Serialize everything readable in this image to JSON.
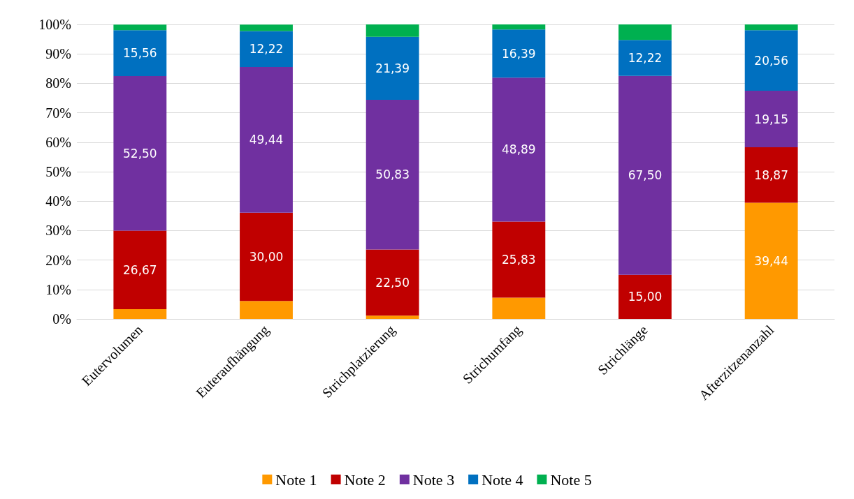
{
  "chart_data": {
    "type": "bar",
    "stacked": true,
    "categories": [
      "Eutervolumen",
      "Euteraufhängung",
      "Strichplatzierung",
      "Strichumfang",
      "Strichlänge",
      "Afterzitzenanzahl"
    ],
    "series": [
      {
        "name": "Note 1",
        "color": "#ff9900",
        "values": [
          3.3,
          6.1,
          1.1,
          7.2,
          0,
          39.44
        ],
        "value_labels": [
          null,
          null,
          null,
          null,
          null,
          "39,44"
        ]
      },
      {
        "name": "Note 2",
        "color": "#c00000",
        "values": [
          26.67,
          30.0,
          22.5,
          25.83,
          15.0,
          18.87
        ],
        "value_labels": [
          "26,67",
          "30,00",
          "22,50",
          "25,83",
          "15,00",
          "18,87"
        ]
      },
      {
        "name": "Note 3",
        "color": "#7030a0",
        "values": [
          52.5,
          49.44,
          50.83,
          48.89,
          67.5,
          19.15
        ],
        "value_labels": [
          "52,50",
          "49,44",
          "50,83",
          "48,89",
          "67,50",
          "19,15"
        ]
      },
      {
        "name": "Note 4",
        "color": "#0070c0",
        "values": [
          15.56,
          12.22,
          21.39,
          16.39,
          12.22,
          20.56
        ],
        "value_labels": [
          "15,56",
          "12,22",
          "21,39",
          "16,39",
          "12,22",
          "20,56"
        ]
      },
      {
        "name": "Note 5",
        "color": "#00b050",
        "values": [
          1.9,
          2.2,
          4.2,
          1.7,
          5.3,
          2.0
        ]
      }
    ],
    "ylim": [
      0,
      100
    ],
    "yticks": [
      {
        "value": 0,
        "label": "0%"
      },
      {
        "value": 10,
        "label": "10%"
      },
      {
        "value": 20,
        "label": "20%"
      },
      {
        "value": 30,
        "label": "30%"
      },
      {
        "value": 40,
        "label": "40%"
      },
      {
        "value": 50,
        "label": "50%"
      },
      {
        "value": 60,
        "label": "60%"
      },
      {
        "value": 70,
        "label": "70%"
      },
      {
        "value": 80,
        "label": "80%"
      },
      {
        "value": 90,
        "label": "90%"
      },
      {
        "value": 100,
        "label": "100%"
      }
    ],
    "grid": "y",
    "legend": "bottom"
  }
}
